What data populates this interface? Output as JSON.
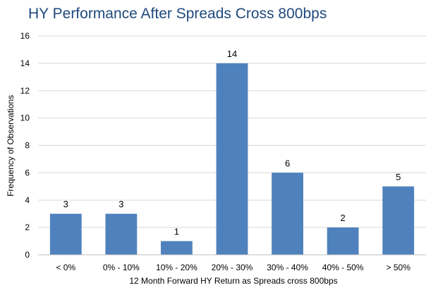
{
  "chart_data": {
    "type": "bar",
    "title": "HY Performance After Spreads Cross 800bps",
    "xlabel": "12 Month Forward HY Return as Spreads cross 800bps",
    "ylabel": "Frequency of Observations",
    "categories": [
      "< 0%",
      "0% - 10%",
      "10% - 20%",
      "20% - 30%",
      "30% - 40%",
      "40% - 50%",
      "> 50%"
    ],
    "values": [
      3,
      3,
      1,
      14,
      6,
      2,
      5
    ],
    "data_labels": [
      "3",
      "3",
      "1",
      "14",
      "6",
      "2",
      "5"
    ],
    "ylim": [
      0,
      16
    ],
    "yticks": [
      0,
      2,
      4,
      6,
      8,
      10,
      12,
      14,
      16
    ],
    "grid": true,
    "legend": "none",
    "bar_color": "#4F81BD"
  }
}
